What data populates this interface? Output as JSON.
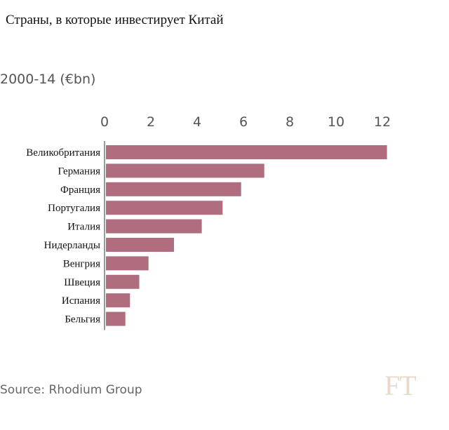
{
  "title": "Страны, в которые инвестирует Китай",
  "subtitle": "2000-14 (€bn)",
  "source": "Source: Rhodium Group",
  "logo": "FT",
  "colors": {
    "bar": "#b06d7e",
    "axis": "#999999",
    "logo": "#e8d9c8"
  },
  "chart_data": {
    "type": "bar",
    "orientation": "horizontal",
    "title": "Страны, в которые инвестирует Китай",
    "subtitle": "2000-14 (€bn)",
    "categories": [
      "Великобритания",
      "Германия",
      "Франция",
      "Португалия",
      "Италия",
      "Нидерланды",
      "Венгрия",
      "Швеция",
      "Испания",
      "Бельгия"
    ],
    "values": [
      12.2,
      6.9,
      5.9,
      5.1,
      4.2,
      3.0,
      1.9,
      1.5,
      1.1,
      0.9
    ],
    "xticks": [
      0,
      2,
      4,
      6,
      8,
      10,
      12
    ],
    "xlim": [
      0,
      12.3
    ],
    "grid": false,
    "xlabel": "",
    "ylabel": ""
  }
}
